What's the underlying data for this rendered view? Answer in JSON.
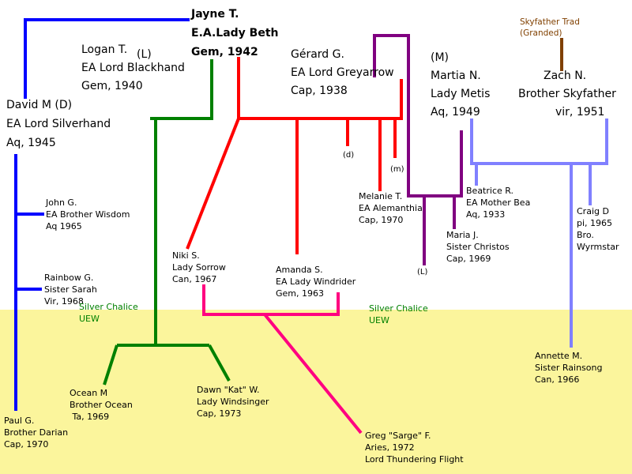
{
  "people": [
    {
      "lines": [
        "Jayne T.",
        "E.A.Lady Beth",
        "Gem, 1942"
      ]
    },
    {
      "lines": [
        "Logan T.",
        "EA Lord Blackhand",
        "Gem, 1940"
      ]
    },
    {
      "lines": [
        "Gérard G.",
        "EA Lord Greyarrow",
        "Cap, 1938"
      ]
    },
    {
      "lines": [
        "(M)",
        "Martia N.",
        "Lady Metis",
        "Aq, 1949"
      ]
    },
    {
      "lines": [
        "Zach N.",
        "Brother Skyfather",
        "vir, 1951"
      ]
    },
    {
      "lines": [
        "Skyfather Trad",
        "(Granded)"
      ]
    },
    {
      "lines": [
        "David M (D)",
        "EA Lord Silverhand",
        "Aq, 1945"
      ]
    },
    {
      "lines": [
        "John G.",
        "EA Brother Wisdom",
        "Aq 1965"
      ]
    },
    {
      "lines": [
        "Rainbow G.",
        "Sister Sarah",
        "Vir, 1968"
      ]
    },
    {
      "lines": [
        "Silver Chalice",
        "UEW"
      ]
    },
    {
      "lines": [
        "Ocean M",
        "Brother Ocean",
        " Ta, 1969"
      ]
    },
    {
      "lines": [
        "Paul G.",
        "Brother Darian",
        "Cap, 1970"
      ]
    },
    {
      "lines": [
        "Dawn \"Kat\" W.",
        "Lady Windsinger",
        "Cap, 1973"
      ]
    },
    {
      "lines": [
        "Niki S.",
        "Lady Sorrow",
        "Can, 1967"
      ]
    },
    {
      "lines": [
        "Amanda S.",
        "EA Lady Windrider",
        "Gem, 1963"
      ]
    },
    {
      "lines": [
        "Silver Chalice",
        "UEW"
      ]
    },
    {
      "lines": [
        "Greg \"Sarge\" F.",
        "Aries, 1972",
        "Lord Thundering Flight"
      ]
    },
    {
      "lines": [
        "Melanie T.",
        "EA Alemanthia",
        "Cap, 1970"
      ]
    },
    {
      "lines": [
        "Maria J.",
        "Sister Christos",
        "Cap, 1969"
      ]
    },
    {
      "lines": [
        "Beatrice R.",
        "EA Mother Bea",
        "Aq, 1933"
      ]
    },
    {
      "lines": [
        "Craig D",
        "pi, 1965",
        "Bro.",
        "Wyrmstar"
      ]
    },
    {
      "lines": [
        "Annette M.",
        "Sister Rainsong",
        "Can, 1966"
      ]
    }
  ],
  "notes": [
    "(L)",
    "(d)",
    "(m)",
    "(L)"
  ]
}
